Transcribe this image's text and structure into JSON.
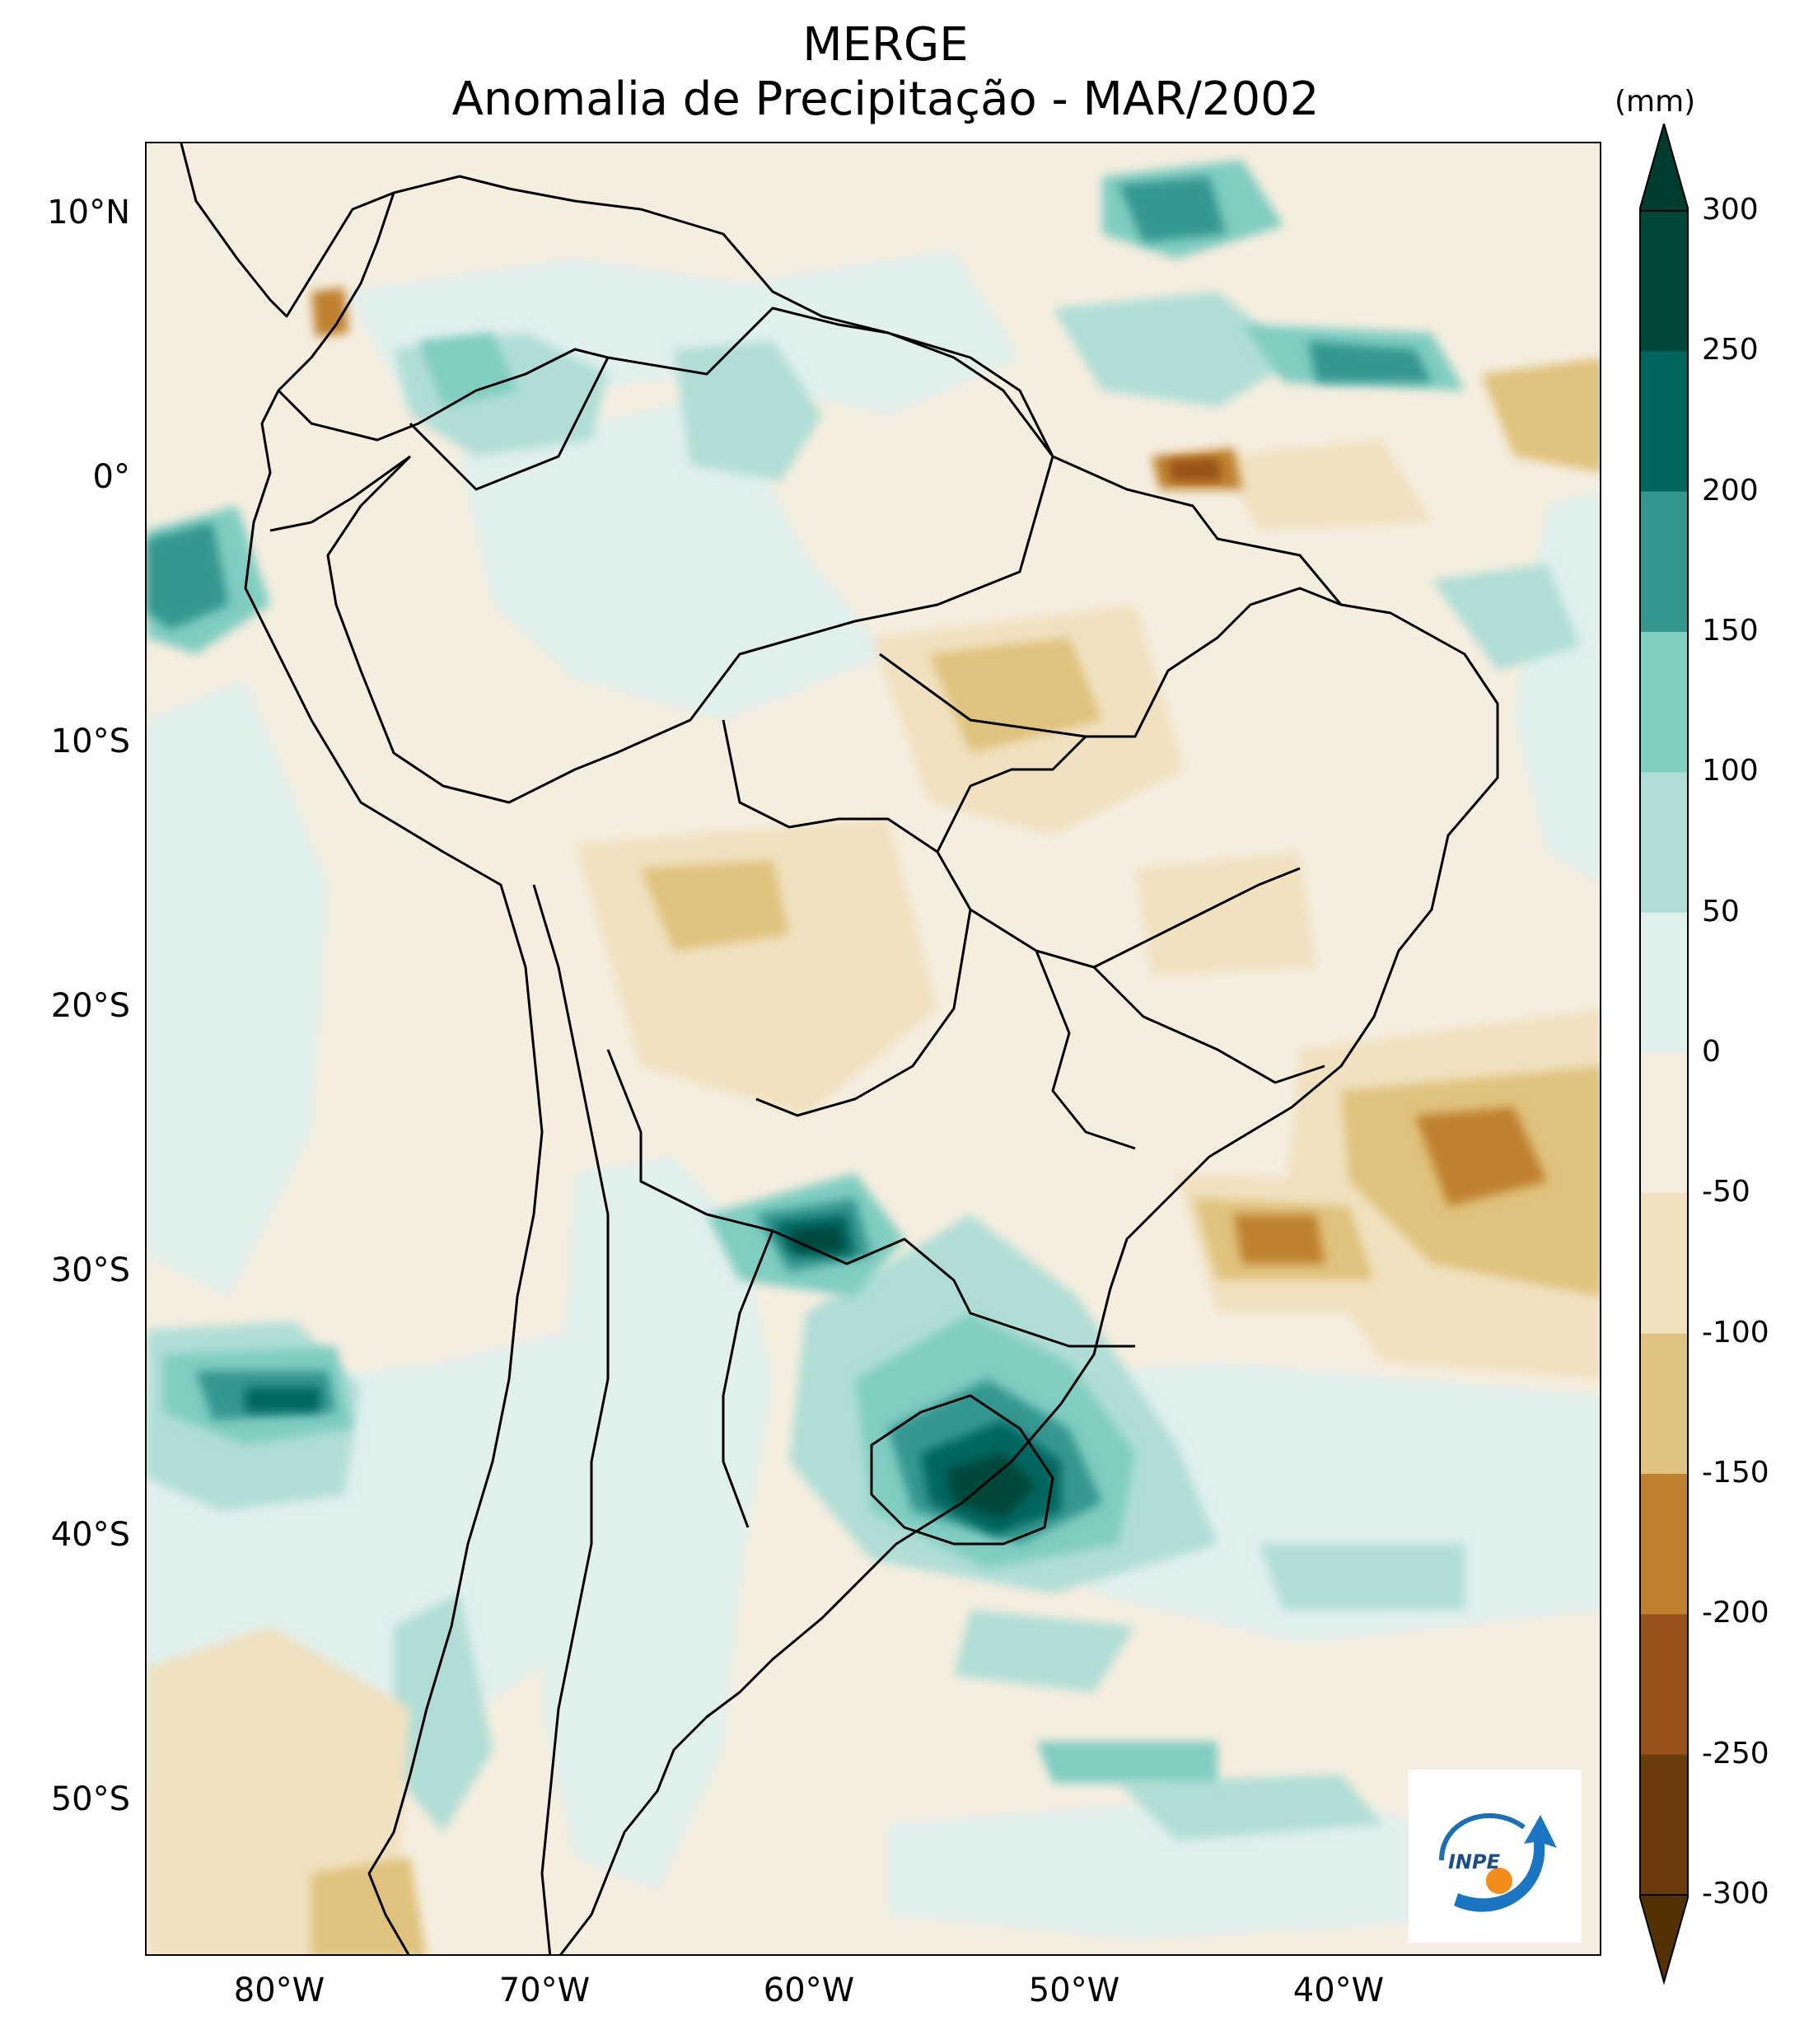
{
  "title": "MERGE",
  "subtitle": "Anomalia de Precipitação - MAR/2002",
  "colorbar": {
    "unit": "(mm)",
    "ticks": [
      "300",
      "250",
      "200",
      "150",
      "100",
      "50",
      "0",
      "-50",
      "-100",
      "-150",
      "-200",
      "-250",
      "-300"
    ],
    "colors": [
      "#00463b",
      "#01665e",
      "#35978f",
      "#80cdc1",
      "#b0ded6",
      "#e0f0ed",
      "#f5eedf",
      "#f0e1c0",
      "#dfc27d",
      "#bf812d",
      "#985118",
      "#6b3c0c"
    ],
    "extend_high_color": "#003c30",
    "extend_low_color": "#543005"
  },
  "map": {
    "latitude_labels": [
      "10°N",
      "0°",
      "10°S",
      "20°S",
      "30°S",
      "40°S",
      "50°S"
    ],
    "longitude_labels": [
      "80°W",
      "70°W",
      "60°W",
      "50°W",
      "40°W"
    ],
    "lon_range": [
      -85,
      -30
    ],
    "lat_range": [
      -56,
      12.5
    ],
    "latitude_values": [
      10,
      0,
      -10,
      -20,
      -30,
      -40,
      -50
    ],
    "longitude_values": [
      -80,
      -70,
      -60,
      -50,
      -40
    ]
  },
  "logo": {
    "text": "INPE",
    "icon": "inpe-logo"
  }
}
